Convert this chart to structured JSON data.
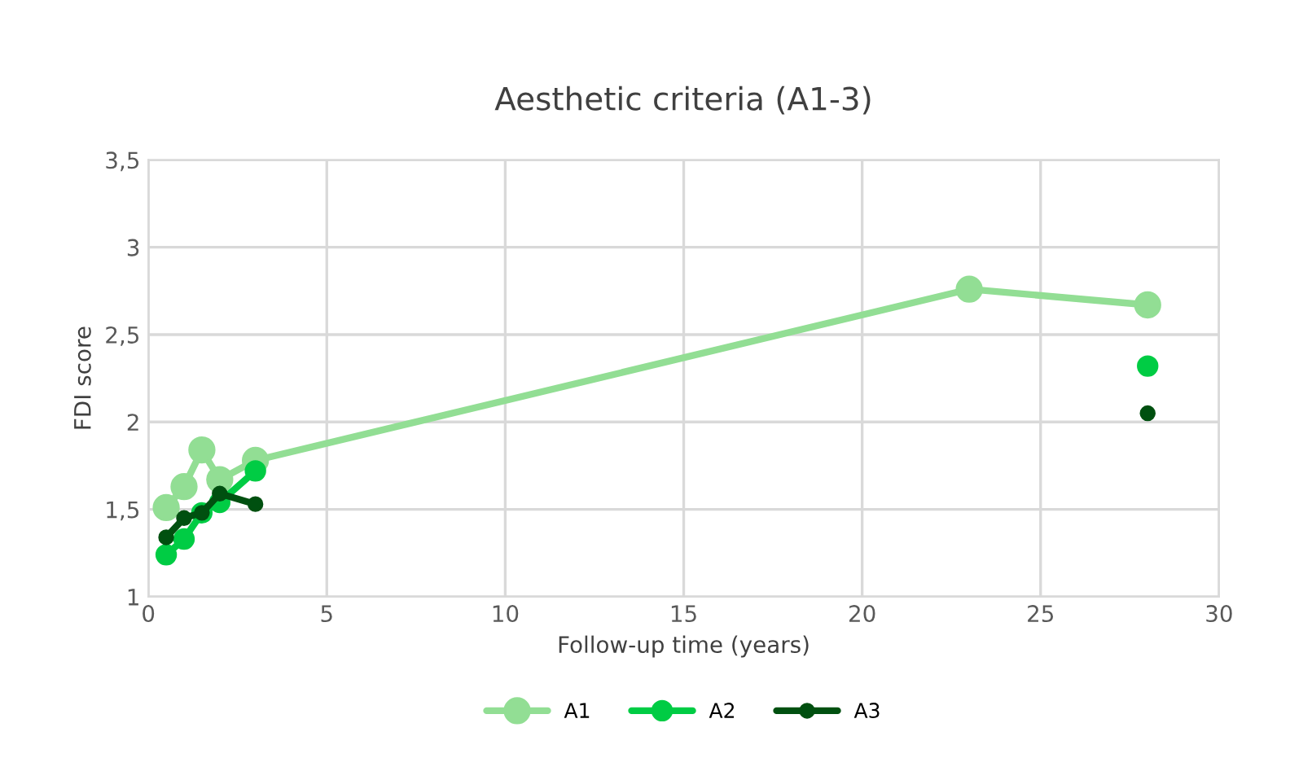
{
  "chart_data": {
    "type": "line",
    "title": "Aesthetic criteria (A1-3)",
    "xlabel": "Follow-up time (years)",
    "ylabel": "FDI score",
    "x": [
      0.5,
      1,
      1.5,
      2,
      3,
      23,
      28
    ],
    "series": [
      {
        "name": "A1",
        "color": "#92de94",
        "values": [
          1.51,
          1.63,
          1.84,
          1.67,
          1.78,
          2.76,
          2.67
        ]
      },
      {
        "name": "A2",
        "color": "#00cc44",
        "values": [
          1.24,
          1.33,
          1.48,
          1.54,
          1.72,
          null,
          2.32
        ]
      },
      {
        "name": "A3",
        "color": "#005010",
        "values": [
          1.34,
          1.45,
          1.48,
          1.59,
          1.53,
          null,
          2.05
        ]
      }
    ],
    "xlim": [
      0,
      30
    ],
    "xticks": [
      0,
      5,
      10,
      15,
      20,
      25,
      30
    ],
    "ylim": [
      1,
      3.5
    ],
    "yticks": [
      1,
      {
        "value": 1.5,
        "label": "1,5"
      },
      2,
      {
        "value": 2.5,
        "label": "2,5"
      },
      3,
      {
        "value": 3.5,
        "label": "3,5"
      }
    ],
    "grid": true,
    "legend": "bottom",
    "marker": "circle",
    "line_style": "solid"
  }
}
